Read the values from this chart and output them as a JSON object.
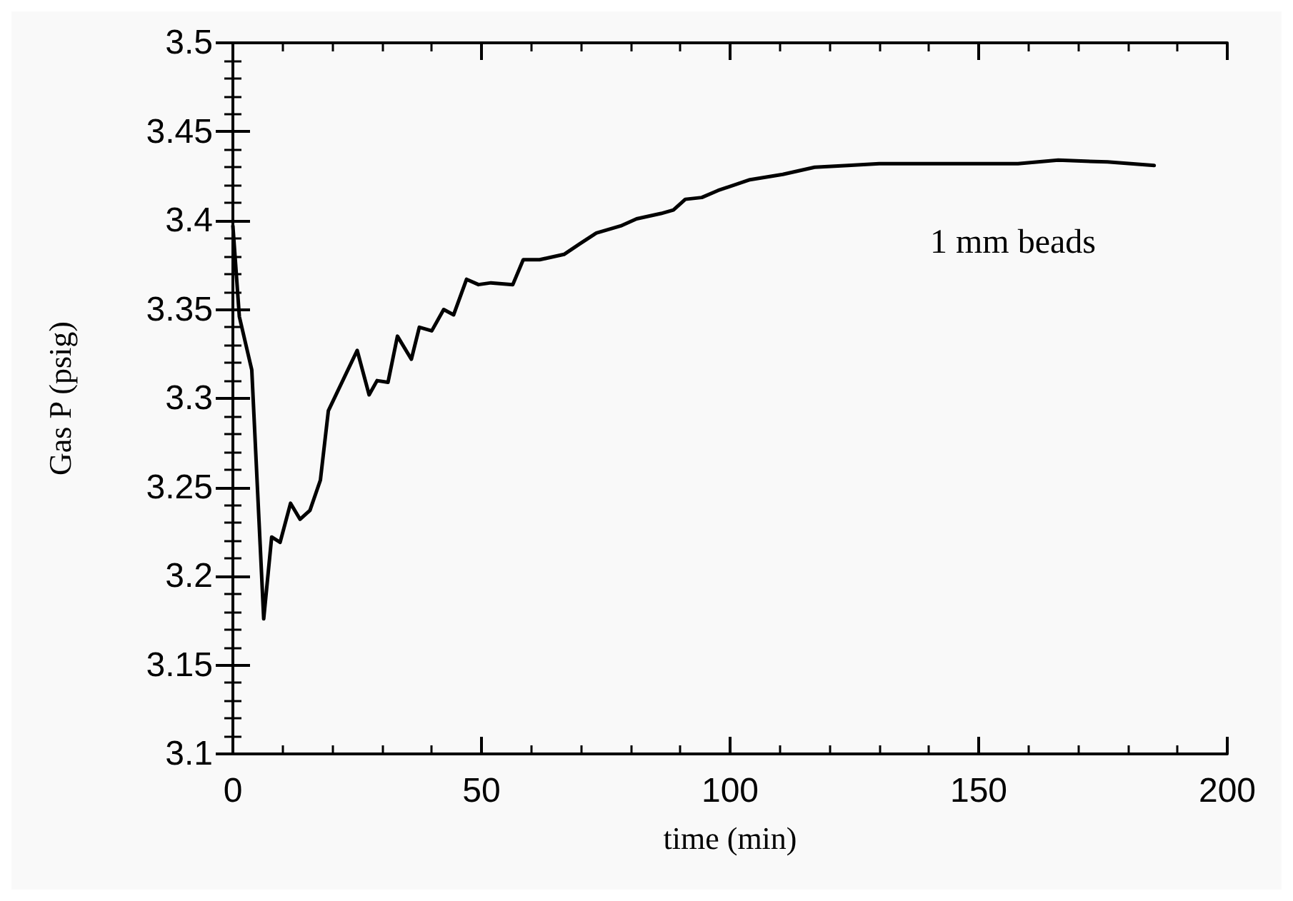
{
  "chart_data": {
    "type": "line",
    "xlabel": "time (min)",
    "ylabel": "Gas P (psig)",
    "annotations": [
      "1 mm beads"
    ],
    "x": [
      0,
      1.3,
      3.8,
      6.2,
      7.8,
      9.5,
      11.6,
      13.5,
      15.5,
      17.6,
      19.2,
      25,
      27.4,
      29,
      31.2,
      33.1,
      35.9,
      37.5,
      40,
      42.4,
      44.4,
      47,
      49.4,
      51.9,
      56.3,
      58.4,
      61.7,
      66.6,
      69.8,
      73.1,
      78,
      81.2,
      86.1,
      88.6,
      91,
      94.3,
      97.6,
      104,
      110.6,
      117,
      123.7,
      130,
      141.6,
      157.9,
      166,
      175.9,
      185.3
    ],
    "series": [
      {
        "color": "#000000",
        "values": [
          3.397,
          3.346,
          3.316,
          3.176,
          3.222,
          3.219,
          3.241,
          3.232,
          3.237,
          3.254,
          3.293,
          3.327,
          3.302,
          3.31,
          3.309,
          3.335,
          3.322,
          3.34,
          3.338,
          3.35,
          3.347,
          3.367,
          3.364,
          3.365,
          3.364,
          3.378,
          3.378,
          3.381,
          3.387,
          3.393,
          3.397,
          3.401,
          3.404,
          3.406,
          3.412,
          3.413,
          3.417,
          3.423,
          3.426,
          3.43,
          3.431,
          3.432,
          3.432,
          3.432,
          3.434,
          3.433,
          3.431
        ]
      }
    ],
    "xlim": [
      0,
      200
    ],
    "xticks": [
      0,
      50,
      100,
      150,
      200
    ],
    "ylim": [
      3.1,
      3.5
    ],
    "yticks": [
      3.1,
      3.15,
      3.2,
      3.25,
      3.3,
      3.35,
      3.4,
      3.45,
      3.5
    ],
    "grid": false,
    "marker": "none",
    "line_style": "solid"
  }
}
